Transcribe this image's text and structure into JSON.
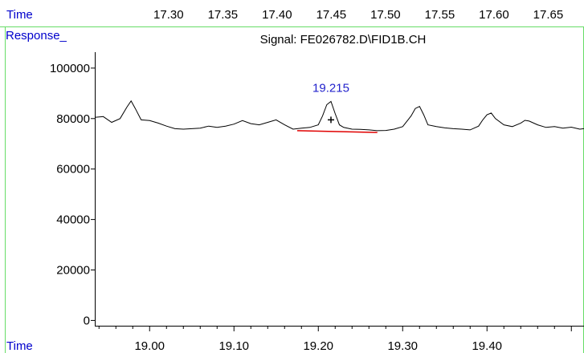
{
  "header": {
    "top_axis_label": "Time",
    "response_label": "Response_",
    "signal_title": "Signal: FE026782.D\\FID1B.CH",
    "bottom_axis_label": "Time"
  },
  "colors": {
    "axis_label": "#0000cc",
    "divider": "#66dd66",
    "trace": "#000000",
    "baseline": "#e00000",
    "peak_label": "#2222cc"
  },
  "top_axis": {
    "ticks": [
      "17.30",
      "17.35",
      "17.40",
      "17.45",
      "17.50",
      "17.55",
      "17.60",
      "17.65"
    ],
    "values": [
      17.3,
      17.35,
      17.4,
      17.45,
      17.5,
      17.55,
      17.6,
      17.65
    ],
    "range": [
      17.232,
      17.683
    ]
  },
  "chart_data": {
    "type": "line",
    "title": "Signal: FE026782.D\\FID1B.CH",
    "xlabel": "Time",
    "ylabel": "Response_",
    "xlim": [
      18.935,
      19.515
    ],
    "ylim": [
      -4000,
      106000
    ],
    "x_ticks": [
      "19.00",
      "19.10",
      "19.20",
      "19.30",
      "19.40"
    ],
    "x_tick_values": [
      19.0,
      19.1,
      19.2,
      19.3,
      19.4
    ],
    "y_ticks": [
      "0",
      "20000",
      "40000",
      "60000",
      "80000",
      "100000"
    ],
    "y_tick_values": [
      0,
      20000,
      40000,
      60000,
      80000,
      100000
    ],
    "grid": false,
    "series": [
      {
        "x": [
          18.935,
          18.945,
          18.955,
          18.965,
          18.973,
          18.978,
          18.983,
          18.99,
          19.0,
          19.01,
          19.02,
          19.03,
          19.04,
          19.05,
          19.06,
          19.07,
          19.08,
          19.09,
          19.1,
          19.11,
          19.12,
          19.13,
          19.14,
          19.15,
          19.16,
          19.17,
          19.18,
          19.19,
          19.2,
          19.205,
          19.21,
          19.215,
          19.22,
          19.225,
          19.23,
          19.24,
          19.25,
          19.26,
          19.27,
          19.28,
          19.29,
          19.3,
          19.31,
          19.315,
          19.32,
          19.325,
          19.33,
          19.34,
          19.35,
          19.36,
          19.37,
          19.38,
          19.39,
          19.395,
          19.4,
          19.405,
          19.41,
          19.42,
          19.43,
          19.44,
          19.445,
          19.45,
          19.46,
          19.47,
          19.48,
          19.49,
          19.5,
          19.51,
          19.515
        ],
        "y": [
          80500,
          80800,
          78500,
          80000,
          84500,
          87000,
          84000,
          79500,
          79200,
          78200,
          77000,
          76000,
          75800,
          76000,
          76200,
          77000,
          76500,
          77000,
          77800,
          79200,
          78000,
          77500,
          78500,
          79500,
          77500,
          75800,
          76200,
          76500,
          77500,
          81000,
          85500,
          86800,
          82000,
          77500,
          76500,
          75800,
          75700,
          75500,
          75200,
          75300,
          75800,
          76800,
          81000,
          84000,
          84800,
          81500,
          77500,
          76800,
          76300,
          76000,
          75800,
          75500,
          77000,
          79500,
          81500,
          82200,
          80000,
          77500,
          76800,
          78200,
          79300,
          79000,
          77500,
          76500,
          76800,
          76200,
          76600,
          75800,
          76000
        ]
      }
    ],
    "annotations": [
      {
        "label": "19.215",
        "x": 19.215,
        "y": 86800
      }
    ],
    "marker": {
      "x": 19.215,
      "y": 79500
    },
    "baseline": {
      "x": [
        19.175,
        19.27
      ],
      "y": [
        75200,
        74500
      ]
    }
  }
}
